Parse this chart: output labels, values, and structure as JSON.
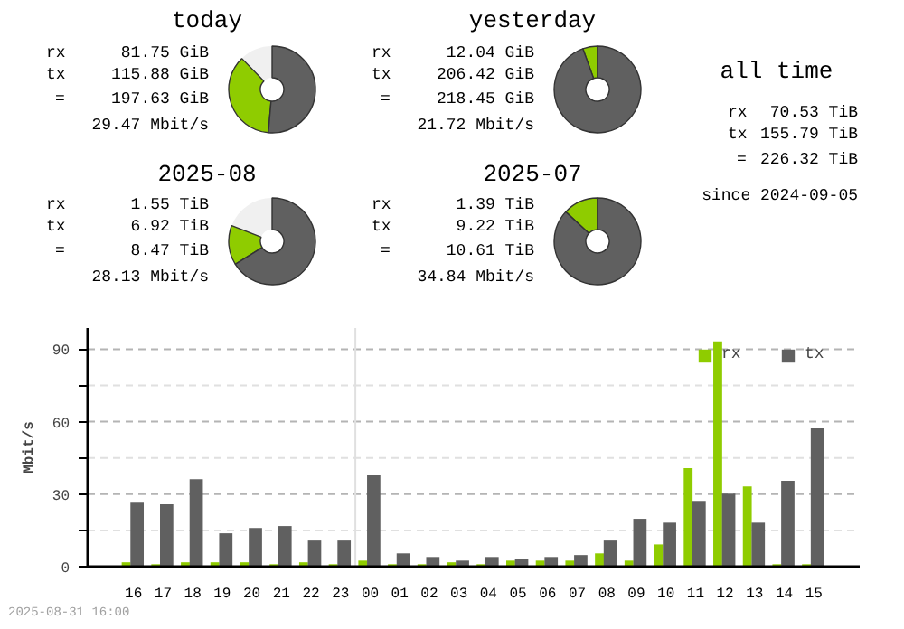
{
  "chart_data": [
    {
      "type": "donut",
      "title": "today",
      "categories": [
        null,
        null,
        null
      ],
      "values": [
        12.3,
        36.3,
        51.4
      ],
      "colors": [
        "#f0f0f0",
        "#8fcc00",
        "#606060"
      ],
      "annotations": [
        "rx",
        "81.75 GiB",
        "tx",
        "115.88 GiB",
        "=",
        "197.63 GiB",
        "29.47 Mbit/s"
      ]
    },
    {
      "type": "donut",
      "title": "yesterday",
      "categories": [
        null,
        null
      ],
      "values": [
        5.5,
        94.5
      ],
      "colors": [
        "#8fcc00",
        "#606060"
      ],
      "annotations": [
        "rx",
        "12.04 GiB",
        "tx",
        "206.42 GiB",
        "=",
        "218.45 GiB",
        "21.72 Mbit/s"
      ]
    },
    {
      "type": "donut",
      "title": "2025-08",
      "categories": [
        null,
        null,
        null
      ],
      "values": [
        19.1,
        14.8,
        66.1
      ],
      "colors": [
        "#f0f0f0",
        "#8fcc00",
        "#606060"
      ],
      "annotations": [
        "rx",
        "1.55 TiB",
        "tx",
        "6.92 TiB",
        "=",
        "8.47 TiB",
        "28.13 Mbit/s"
      ]
    },
    {
      "type": "donut",
      "title": "2025-07",
      "categories": [
        null,
        null
      ],
      "values": [
        13.1,
        86.9
      ],
      "colors": [
        "#8fcc00",
        "#606060"
      ],
      "annotations": [
        "rx",
        "1.39 TiB",
        "tx",
        "9.22 TiB",
        "=",
        "10.61 TiB",
        "34.84 Mbit/s"
      ]
    },
    {
      "type": "other",
      "title": "all time",
      "annotations": [
        "rx",
        "70.53 TiB",
        "tx",
        "155.79 TiB",
        "=",
        "226.32 TiB",
        "since 2024-09-05"
      ]
    },
    {
      "type": "bar",
      "ylabel": "Mbit/s",
      "categories": [
        "16",
        "17",
        "18",
        "19",
        "20",
        "21",
        "22",
        "23",
        "00",
        "01",
        "02",
        "03",
        "04",
        "05",
        "06",
        "07",
        "08",
        "09",
        "10",
        "11",
        "12",
        "13",
        "14",
        "15"
      ],
      "series": [
        {
          "name": "rx",
          "color": "#8fcc00",
          "values": [
            1.8,
            1,
            1.8,
            1.8,
            1.8,
            1,
            1.8,
            1,
            2.5,
            1,
            1,
            1.8,
            1,
            2.5,
            2.5,
            2.5,
            5.5,
            2.5,
            9.2,
            40.8,
            93.2,
            33.2,
            1,
            1
          ]
        },
        {
          "name": "tx",
          "color": "#606060",
          "values": [
            26.5,
            25.8,
            36.2,
            13.8,
            16,
            16.8,
            10.8,
            10.8,
            37.8,
            5.5,
            4,
            2.5,
            4,
            3.2,
            4,
            4.8,
            10.8,
            19.8,
            18.2,
            27.2,
            30.2,
            18.2,
            35.5,
            57.2
          ]
        }
      ],
      "ylim": [
        0,
        98.75
      ],
      "yticks": [
        0,
        {
          "value": 15,
          "label": null
        },
        30,
        {
          "value": 45,
          "label": null
        },
        60,
        {
          "value": 75,
          "label": null
        },
        90
      ],
      "grid": "y",
      "legend": "top right",
      "ref_lines": [
        {
          "axis": "x",
          "value": "00",
          "color": "#e0e0e0"
        }
      ],
      "annotations": [
        "2025-08-31 16:00"
      ]
    }
  ]
}
